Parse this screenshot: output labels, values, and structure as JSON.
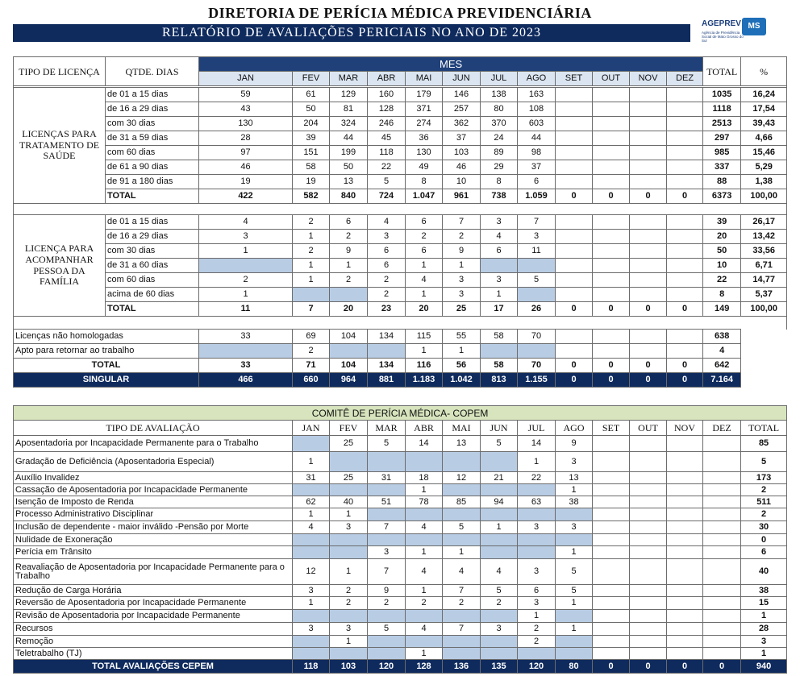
{
  "header": {
    "title": "DIRETORIA DE PERÍCIA MÉDICA PREVIDENCIÁRIA",
    "subtitle": "RELATÓRIO DE AVALIAÇÕES PERICIAIS NO ANO DE 2023",
    "logo": {
      "name": "AGEPREV",
      "badge": "MS",
      "caption": "Agência de Previdência Social de Mato Grosso do Sul"
    }
  },
  "months": [
    "JAN",
    "FEV",
    "MAR",
    "ABR",
    "MAI",
    "JUN",
    "JUL",
    "AGO",
    "SET",
    "OUT",
    "NOV",
    "DEZ"
  ],
  "licencas": {
    "columns": {
      "type": "TIPO DE LICENÇA",
      "days": "QTDE. DIAS",
      "month_group": "MES",
      "total": "TOTAL",
      "percent": "%"
    },
    "groups": [
      {
        "label": "LICENÇAS PARA TRATAMENTO DE SAÚDE",
        "rows": [
          {
            "label": "de 01 a 15 dias",
            "values": [
              "59",
              "61",
              "129",
              "160",
              "179",
              "146",
              "138",
              "163",
              null,
              null,
              null,
              null
            ],
            "total": "1035",
            "percent": "16,24"
          },
          {
            "label": "de 16 a 29 dias",
            "values": [
              "43",
              "50",
              "81",
              "128",
              "371",
              "257",
              "80",
              "108",
              null,
              null,
              null,
              null
            ],
            "total": "1118",
            "percent": "17,54"
          },
          {
            "label": "com 30 dias",
            "values": [
              "130",
              "204",
              "324",
              "246",
              "274",
              "362",
              "370",
              "603",
              null,
              null,
              null,
              null
            ],
            "total": "2513",
            "percent": "39,43"
          },
          {
            "label": "de 31 a 59 dias",
            "values": [
              "28",
              "39",
              "44",
              "45",
              "36",
              "37",
              "24",
              "44",
              null,
              null,
              null,
              null
            ],
            "total": "297",
            "percent": "4,66"
          },
          {
            "label": "com 60 dias",
            "values": [
              "97",
              "151",
              "199",
              "118",
              "130",
              "103",
              "89",
              "98",
              null,
              null,
              null,
              null
            ],
            "total": "985",
            "percent": "15,46"
          },
          {
            "label": "de 61 a 90 dias",
            "values": [
              "46",
              "58",
              "50",
              "22",
              "49",
              "46",
              "29",
              "37",
              null,
              null,
              null,
              null
            ],
            "total": "337",
            "percent": "5,29"
          },
          {
            "label": "de 91 a 180 dias",
            "values": [
              "19",
              "19",
              "13",
              "5",
              "8",
              "10",
              "8",
              "6",
              null,
              null,
              null,
              null
            ],
            "total": "88",
            "percent": "1,38"
          }
        ],
        "total_row": {
          "label": "TOTAL",
          "values": [
            "422",
            "582",
            "840",
            "724",
            "1.047",
            "961",
            "738",
            "1.059",
            "0",
            "0",
            "0",
            "0"
          ],
          "total": "6373",
          "percent": "100,00"
        }
      },
      {
        "label": "LICENÇA PARA ACOMPANHAR PESSOA DA FAMÍLIA",
        "rows": [
          {
            "label": "de 01 a 15 dias",
            "values": [
              "4",
              "2",
              "6",
              "4",
              "6",
              "7",
              "3",
              "7",
              null,
              null,
              null,
              null
            ],
            "total": "39",
            "percent": "26,17"
          },
          {
            "label": "de 16 a 29 dias",
            "values": [
              "3",
              "1",
              "2",
              "3",
              "2",
              "2",
              "4",
              "3",
              null,
              null,
              null,
              null
            ],
            "total": "20",
            "percent": "13,42"
          },
          {
            "label": "com 30 dias",
            "values": [
              "1",
              "2",
              "9",
              "6",
              "6",
              "9",
              "6",
              "11",
              null,
              null,
              null,
              null
            ],
            "total": "50",
            "percent": "33,56"
          },
          {
            "label": "de 31 a 60 dias",
            "values": [
              null,
              "1",
              "1",
              "6",
              "1",
              "1",
              null,
              null,
              null,
              null,
              null,
              null
            ],
            "total": "10",
            "percent": "6,71"
          },
          {
            "label": "com 60 dias",
            "values": [
              "2",
              "1",
              "2",
              "2",
              "4",
              "3",
              "3",
              "5",
              null,
              null,
              null,
              null
            ],
            "total": "22",
            "percent": "14,77"
          },
          {
            "label": "acima de 60 dias",
            "values": [
              "1",
              null,
              null,
              "2",
              "1",
              "3",
              "1",
              null,
              null,
              null,
              null,
              null
            ],
            "total": "8",
            "percent": "5,37"
          }
        ],
        "total_row": {
          "label": "TOTAL",
          "values": [
            "11",
            "7",
            "20",
            "23",
            "20",
            "25",
            "17",
            "26",
            "0",
            "0",
            "0",
            "0"
          ],
          "total": "149",
          "percent": "100,00"
        }
      }
    ],
    "others": {
      "rows": [
        {
          "label": "Licenças não homologadas",
          "values": [
            "33",
            "69",
            "104",
            "134",
            "115",
            "55",
            "58",
            "70",
            null,
            null,
            null,
            null
          ],
          "total": "638"
        },
        {
          "label": "Apto para retornar ao trabalho",
          "values": [
            null,
            "2",
            null,
            null,
            "1",
            "1",
            null,
            null,
            null,
            null,
            null,
            null
          ],
          "total": "4"
        }
      ],
      "total_row": {
        "label": "TOTAL",
        "values": [
          "33",
          "71",
          "104",
          "134",
          "116",
          "56",
          "58",
          "70",
          "0",
          "0",
          "0",
          "0"
        ],
        "total": "642"
      },
      "singular_row": {
        "label": "SINGULAR",
        "values": [
          "466",
          "660",
          "964",
          "881",
          "1.183",
          "1.042",
          "813",
          "1.155",
          "0",
          "0",
          "0",
          "0"
        ],
        "total": "7.164"
      }
    }
  },
  "cepem": {
    "title": "COMITÊ DE PERÍCIA MÉDICA- COPEM",
    "columns": {
      "type": "TIPO DE AVALIAÇÃO",
      "total": "TOTAL"
    },
    "rows": [
      {
        "label": "Aposentadoria por Incapacidade Permanente para o Trabalho",
        "values": [
          null,
          "25",
          "5",
          "14",
          "13",
          "5",
          "14",
          "9",
          null,
          null,
          null,
          null
        ],
        "total": "85"
      },
      {
        "label": "Gradação de Deficiência (Aposentadoria Especial)",
        "values": [
          "1",
          null,
          null,
          null,
          null,
          null,
          "1",
          "3",
          null,
          null,
          null,
          null
        ],
        "total": "5"
      },
      {
        "label": "Auxílio Invalidez",
        "values": [
          "31",
          "25",
          "31",
          "18",
          "12",
          "21",
          "22",
          "13",
          null,
          null,
          null,
          null
        ],
        "total": "173"
      },
      {
        "label": "Cassação de Aposentadoria por Incapacidade Permanente",
        "values": [
          null,
          null,
          null,
          "1",
          null,
          null,
          null,
          "1",
          null,
          null,
          null,
          null
        ],
        "total": "2"
      },
      {
        "label": "Isenção de Imposto de Renda",
        "values": [
          "62",
          "40",
          "51",
          "78",
          "85",
          "94",
          "63",
          "38",
          null,
          null,
          null,
          null
        ],
        "total": "511"
      },
      {
        "label": "Processo Administrativo Disciplinar",
        "values": [
          "1",
          "1",
          null,
          null,
          null,
          null,
          null,
          null,
          null,
          null,
          null,
          null
        ],
        "total": "2"
      },
      {
        "label": "Inclusão de dependente - maior inválido -Pensão por Morte",
        "values": [
          "4",
          "3",
          "7",
          "4",
          "5",
          "1",
          "3",
          "3",
          null,
          null,
          null,
          null
        ],
        "total": "30"
      },
      {
        "label": "Nulidade de Exoneração",
        "values": [
          null,
          null,
          null,
          null,
          null,
          null,
          null,
          null,
          null,
          null,
          null,
          null
        ],
        "total": "0"
      },
      {
        "label": "Perícia em Trânsito",
        "values": [
          null,
          null,
          "3",
          "1",
          "1",
          null,
          null,
          "1",
          null,
          null,
          null,
          null
        ],
        "total": "6"
      },
      {
        "label": "Reavaliação de Aposentadoria por Incapacidade Permanente para o Trabalho",
        "values": [
          "12",
          "1",
          "7",
          "4",
          "4",
          "4",
          "3",
          "5",
          null,
          null,
          null,
          null
        ],
        "total": "40"
      },
      {
        "label": "Redução de Carga Horária",
        "values": [
          "3",
          "2",
          "9",
          "1",
          "7",
          "5",
          "6",
          "5",
          null,
          null,
          null,
          null
        ],
        "total": "38"
      },
      {
        "label": "Reversão de Aposentadoria por Incapacidade Permanente",
        "values": [
          "1",
          "2",
          "2",
          "2",
          "2",
          "2",
          "3",
          "1",
          null,
          null,
          null,
          null
        ],
        "total": "15"
      },
      {
        "label": "Revisão de Aposentadoria por Incapacidade Permanente",
        "values": [
          null,
          null,
          null,
          null,
          null,
          null,
          "1",
          null,
          null,
          null,
          null,
          null
        ],
        "total": "1"
      },
      {
        "label": "Recursos",
        "values": [
          "3",
          "3",
          "5",
          "4",
          "7",
          "3",
          "2",
          "1",
          null,
          null,
          null,
          null
        ],
        "total": "28"
      },
      {
        "label": "Remoção",
        "values": [
          null,
          "1",
          null,
          null,
          null,
          null,
          "2",
          null,
          null,
          null,
          null,
          null
        ],
        "total": "3"
      },
      {
        "label": "Teletrabalho (TJ)",
        "values": [
          null,
          null,
          null,
          "1",
          null,
          null,
          null,
          null,
          null,
          null,
          null,
          null
        ],
        "total": "1"
      }
    ],
    "total_row": {
      "label": "TOTAL AVALIAÇÕES CEPEM",
      "values": [
        "118",
        "103",
        "120",
        "128",
        "136",
        "135",
        "120",
        "80",
        "0",
        "0",
        "0",
        "0"
      ],
      "total": "940"
    }
  }
}
